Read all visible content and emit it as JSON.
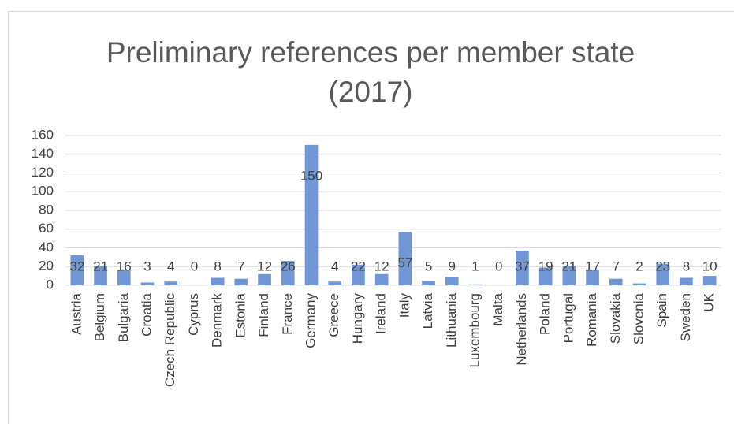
{
  "chart_data": {
    "type": "bar",
    "title": "Preliminary references per member state (2017)",
    "categories": [
      "Austria",
      "Belgium",
      "Bulgaria",
      "Croatia",
      "Czech Republic",
      "Cyprus",
      "Denmark",
      "Estonia",
      "Finland",
      "France",
      "Germany",
      "Greece",
      "Hungary",
      "Ireland",
      "Italy",
      "Latvia",
      "Lithuania",
      "Luxembourg",
      "Malta",
      "Netherlands",
      "Poland",
      "Portugal",
      "Romania",
      "Slovakia",
      "Slovenia",
      "Spain",
      "Sweden",
      "UK"
    ],
    "values": [
      32,
      21,
      16,
      3,
      4,
      0,
      8,
      7,
      12,
      26,
      150,
      4,
      22,
      12,
      57,
      5,
      9,
      1,
      0,
      37,
      19,
      21,
      17,
      7,
      2,
      23,
      8,
      10
    ],
    "color": "#7096d6",
    "ylim": [
      0,
      160
    ],
    "yticks": [
      0,
      20,
      40,
      60,
      80,
      100,
      120,
      140,
      160
    ],
    "grid": true
  }
}
